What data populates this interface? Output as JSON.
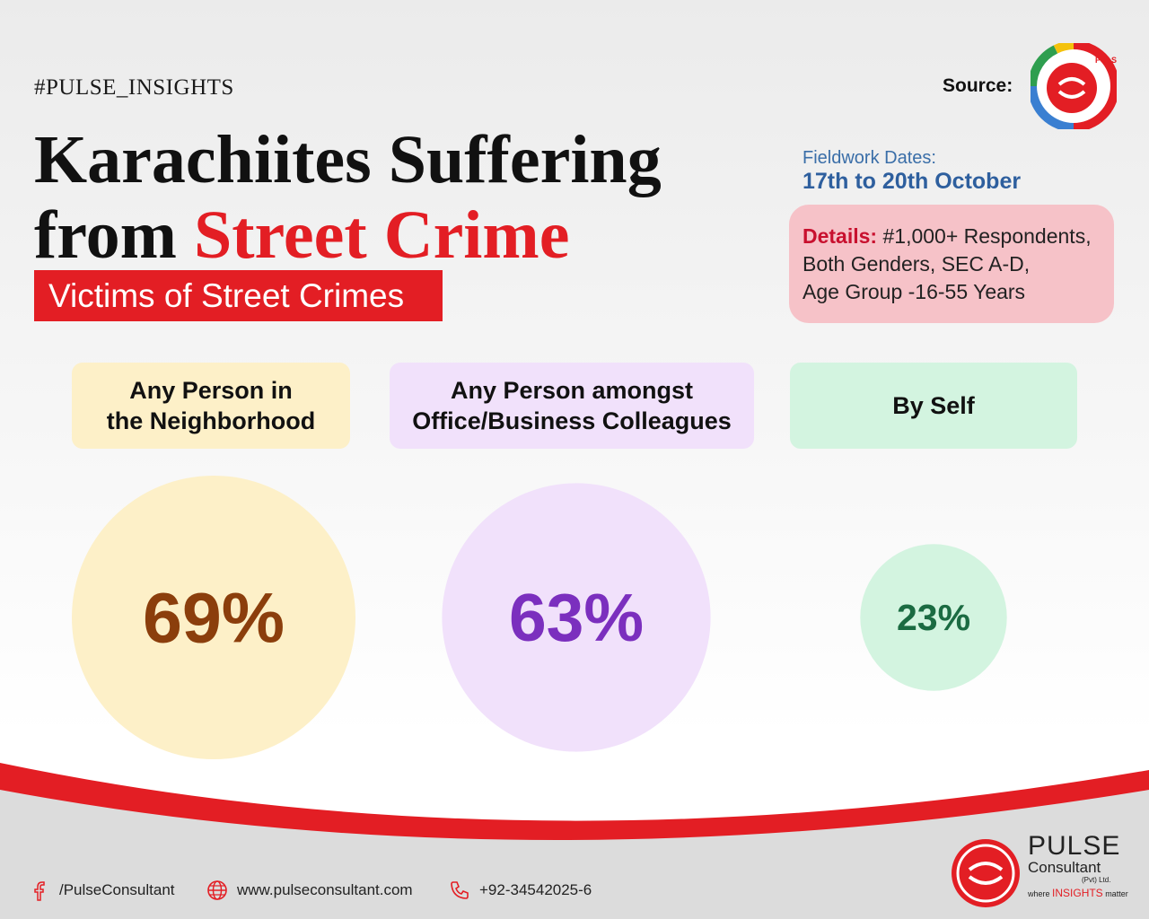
{
  "header": {
    "hashtag": "#PULSE_INSIGHTS",
    "title_line1": "Karachiites Suffering",
    "title_line2_prefix": "from ",
    "title_line2_highlight": "Street Crime",
    "subtitle": "Victims of Street Crimes",
    "source_label": "Source:",
    "source_logo_text": "PULSEPOLL"
  },
  "fieldwork": {
    "label": "Fieldwork Dates:",
    "dates": "17th to 20th October"
  },
  "details": {
    "label": "Details:",
    "line1": "#1,000+ Respondents,",
    "line2": "Both Genders, SEC A-D,",
    "line3": "Age Group -16-55 Years"
  },
  "chart_data": {
    "type": "bubble",
    "categories": [
      "Any Person in the Neighborhood",
      "Any Person amongst Office/Business Colleagues",
      "By Self"
    ],
    "category_lines": [
      [
        "Any Person in",
        "the Neighborhood"
      ],
      [
        "Any Person amongst",
        "Office/Business Colleagues"
      ],
      [
        "By Self"
      ]
    ],
    "values": [
      69,
      63,
      23
    ],
    "labels": [
      "69%",
      "63%",
      "23%"
    ],
    "colors": {
      "fills": [
        "#fdf0c8",
        "#f1e1fb",
        "#d3f4e0"
      ],
      "text": [
        "#8b3e0c",
        "#7b2fbe",
        "#1b6b42"
      ]
    }
  },
  "footer": {
    "facebook": "/PulseConsultant",
    "website": "www.pulseconsultant.com",
    "phone": "+92-34542025-6",
    "icons": [
      "facebook-icon",
      "globe-icon",
      "phone-icon"
    ],
    "brand_name": "PULSE",
    "brand_sub": "Consultant",
    "brand_pvt": "(Pvt) Ltd.",
    "tag_pre": "where ",
    "tag_highlight": "INSIGHTS",
    "tag_post": " matter"
  },
  "colors": {
    "accent": "#e31e24"
  }
}
